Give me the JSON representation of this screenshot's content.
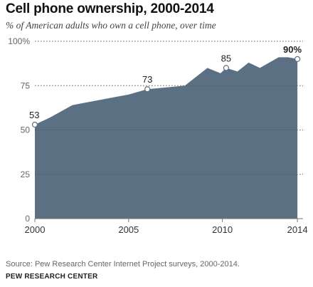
{
  "header": {
    "title": "Cell phone ownership, 2000-2014",
    "subtitle": "% of American adults who own a cell phone, over time"
  },
  "footer": {
    "source": "Source: Pew Research Center Internet Project surveys, 2000-2014.",
    "org": "PEW RESEARCH CENTER"
  },
  "colors": {
    "area_fill": "#5b7183",
    "gridline": "#555555",
    "marker_stroke": "#5b7183",
    "marker_fill": "#ffffff"
  },
  "chart_data": {
    "type": "area",
    "title": "Cell phone ownership, 2000-2014",
    "subtitle": "% of American adults who own a cell phone, over time",
    "xlabel": "",
    "ylabel": "",
    "xlim": [
      2000,
      2014.3
    ],
    "ylim": [
      0,
      100
    ],
    "grid": true,
    "x_ticks": [
      {
        "value": 2000,
        "label": "2000"
      },
      {
        "value": 2005,
        "label": "2005"
      },
      {
        "value": 2010,
        "label": "2010"
      },
      {
        "value": 2014,
        "label": "2014"
      }
    ],
    "y_ticks": [
      {
        "value": 0,
        "label": "0"
      },
      {
        "value": 25,
        "label": "25"
      },
      {
        "value": 50,
        "label": "50"
      },
      {
        "value": 75,
        "label": "75"
      },
      {
        "value": 100,
        "label": "100%"
      }
    ],
    "series": [
      {
        "x": [
          2000,
          2000.8,
          2002,
          2003,
          2004,
          2005,
          2006,
          2007,
          2008,
          2009.2,
          2009.9,
          2010.2,
          2010.8,
          2011.4,
          2012,
          2012.5,
          2013,
          2013.5,
          2014
        ],
        "y": [
          53,
          57,
          64,
          66,
          68,
          70,
          73,
          74,
          75,
          85,
          82,
          85,
          83,
          88,
          85,
          88,
          91,
          91,
          90
        ]
      }
    ],
    "annotations": [
      {
        "x": 2000,
        "y": 53,
        "label": "53",
        "marker": true,
        "bold": false
      },
      {
        "x": 2006,
        "y": 73,
        "label": "73",
        "marker": true,
        "bold": false
      },
      {
        "x": 2010.2,
        "y": 85,
        "label": "85",
        "marker": true,
        "bold": false
      },
      {
        "x": 2014,
        "y": 90,
        "label": "90%",
        "marker": true,
        "bold": true
      }
    ]
  }
}
